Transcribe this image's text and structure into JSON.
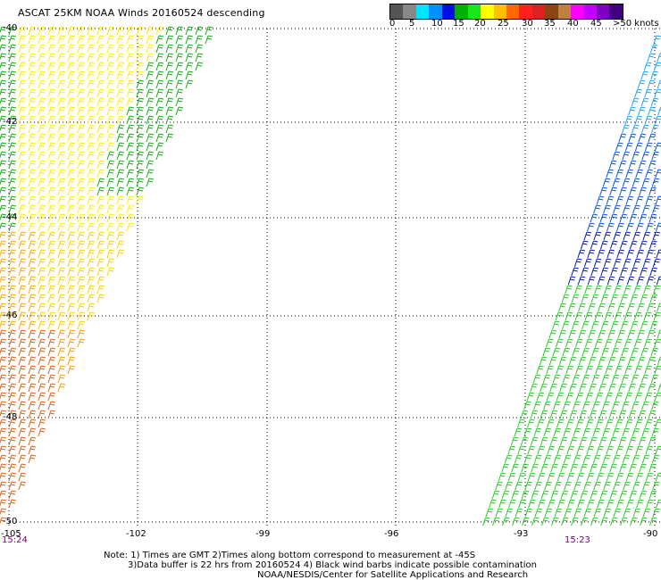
{
  "header": {
    "title": "ASCAT 25KM NOAA Winds 20160524 descending"
  },
  "legend": {
    "colors": [
      "#555555",
      "#888888",
      "#00e5ff",
      "#0090ff",
      "#0010e0",
      "#00b000",
      "#19e619",
      "#ffff00",
      "#ffc000",
      "#ff6a00",
      "#ff2020",
      "#dd2020",
      "#8b4513",
      "#c08040",
      "#ff00ff",
      "#c000ff",
      "#8000c0",
      "#400080"
    ],
    "labels": [
      "0",
      "5",
      "10",
      "15",
      "20",
      "25",
      "30",
      "35",
      "40",
      "45",
      ">50 knots"
    ]
  },
  "axes": {
    "lon_ticks": [
      "-105",
      "-102",
      "-99",
      "-96",
      "-93",
      "-90"
    ],
    "lat_ticks": [
      "-40",
      "-42",
      "-44",
      "-46",
      "-48",
      "-50"
    ]
  },
  "times": {
    "left": "15:24",
    "right": "15:23"
  },
  "notes": {
    "line1": "Note: 1) Times are GMT 2)Times along bottom correspond to measurement at -45S",
    "line2": "3)Data buffer is 22 hrs from 20160524 4) Black wind barbs indicate possible contamination",
    "line3": "NOAA/NESDIS/Center for Satellite Applications and Research"
  }
}
